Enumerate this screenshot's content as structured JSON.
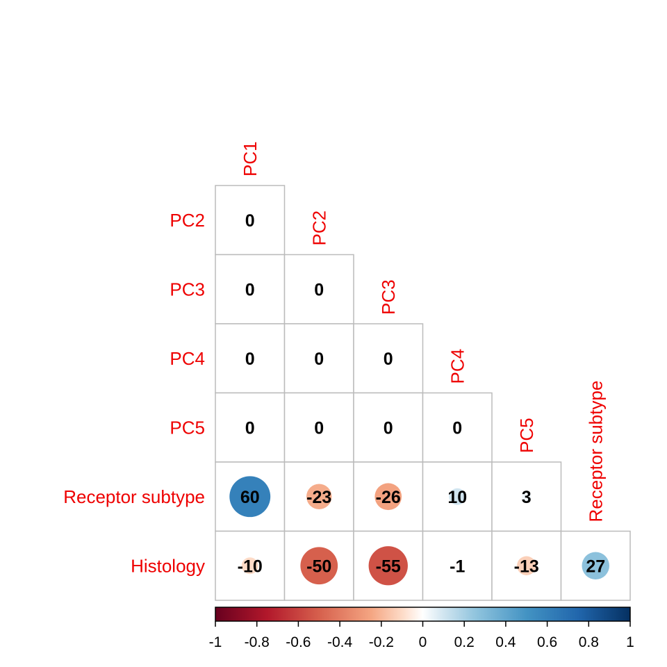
{
  "chart_data": {
    "type": "heatmap",
    "variables": [
      "PC1",
      "PC2",
      "PC3",
      "PC4",
      "PC5",
      "Receptor subtype",
      "Histology"
    ],
    "row_labels": [
      "PC2",
      "PC3",
      "PC4",
      "PC5",
      "Receptor subtype",
      "Histology"
    ],
    "column_labels": [
      "PC1",
      "PC2",
      "PC3",
      "PC4",
      "PC5",
      "Receptor subtype"
    ],
    "matrix_lower": [
      [
        0
      ],
      [
        0,
        0
      ],
      [
        0,
        0,
        0
      ],
      [
        0,
        0,
        0,
        0
      ],
      [
        60,
        -23,
        -26,
        10,
        3
      ],
      [
        -10,
        -50,
        -55,
        -1,
        -13,
        27
      ]
    ],
    "value_scale": 0.01,
    "colorbar": {
      "min": -1,
      "max": 1,
      "ticks": [
        "-1",
        "-0.8",
        "-0.6",
        "-0.4",
        "-0.2",
        "0",
        "0.2",
        "0.4",
        "0.6",
        "0.8",
        "1"
      ],
      "palette": "RdBu"
    },
    "label_color": "#ee0000",
    "grid_color": "#bbbbbb",
    "legend": "bottom"
  }
}
